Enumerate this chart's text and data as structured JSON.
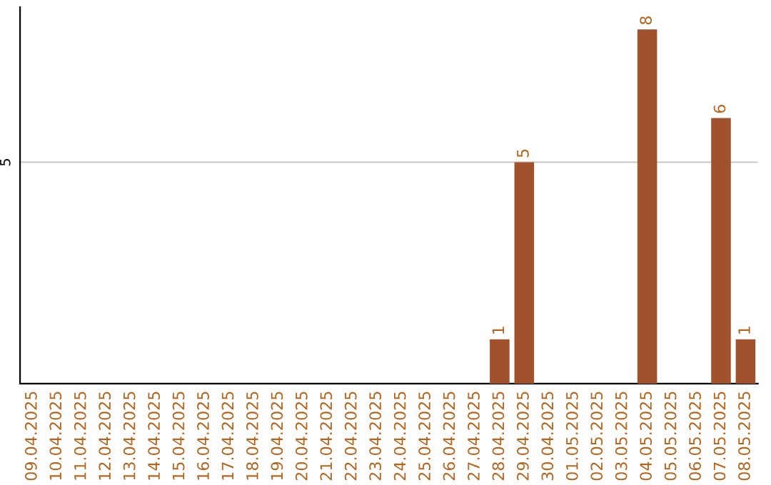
{
  "chart_data": {
    "type": "bar",
    "categories": [
      "09.04.2025",
      "10.04.2025",
      "11.04.2025",
      "12.04.2025",
      "13.04.2025",
      "14.04.2025",
      "15.04.2025",
      "16.04.2025",
      "17.04.2025",
      "18.04.2025",
      "19.04.2025",
      "20.04.2025",
      "21.04.2025",
      "22.04.2025",
      "23.04.2025",
      "24.04.2025",
      "25.04.2025",
      "26.04.2025",
      "27.04.2025",
      "28.04.2025",
      "29.04.2025",
      "30.04.2025",
      "01.05.2025",
      "02.05.2025",
      "03.05.2025",
      "04.05.2025",
      "05.05.2025",
      "06.05.2025",
      "07.05.2025",
      "08.05.2025"
    ],
    "values": [
      null,
      null,
      null,
      null,
      null,
      null,
      null,
      null,
      null,
      null,
      null,
      null,
      null,
      null,
      null,
      null,
      null,
      null,
      null,
      1,
      5,
      null,
      null,
      null,
      null,
      8,
      null,
      null,
      6,
      1
    ],
    "value_labels": [
      null,
      null,
      null,
      null,
      null,
      null,
      null,
      null,
      null,
      null,
      null,
      null,
      null,
      null,
      null,
      null,
      null,
      null,
      null,
      "1",
      "5",
      null,
      null,
      null,
      null,
      "8",
      null,
      null,
      "6",
      "1"
    ],
    "color": "#a0522d",
    "ylim": [
      0,
      8.5
    ],
    "yticks": [
      5
    ],
    "grid": "y",
    "legend": false
  }
}
